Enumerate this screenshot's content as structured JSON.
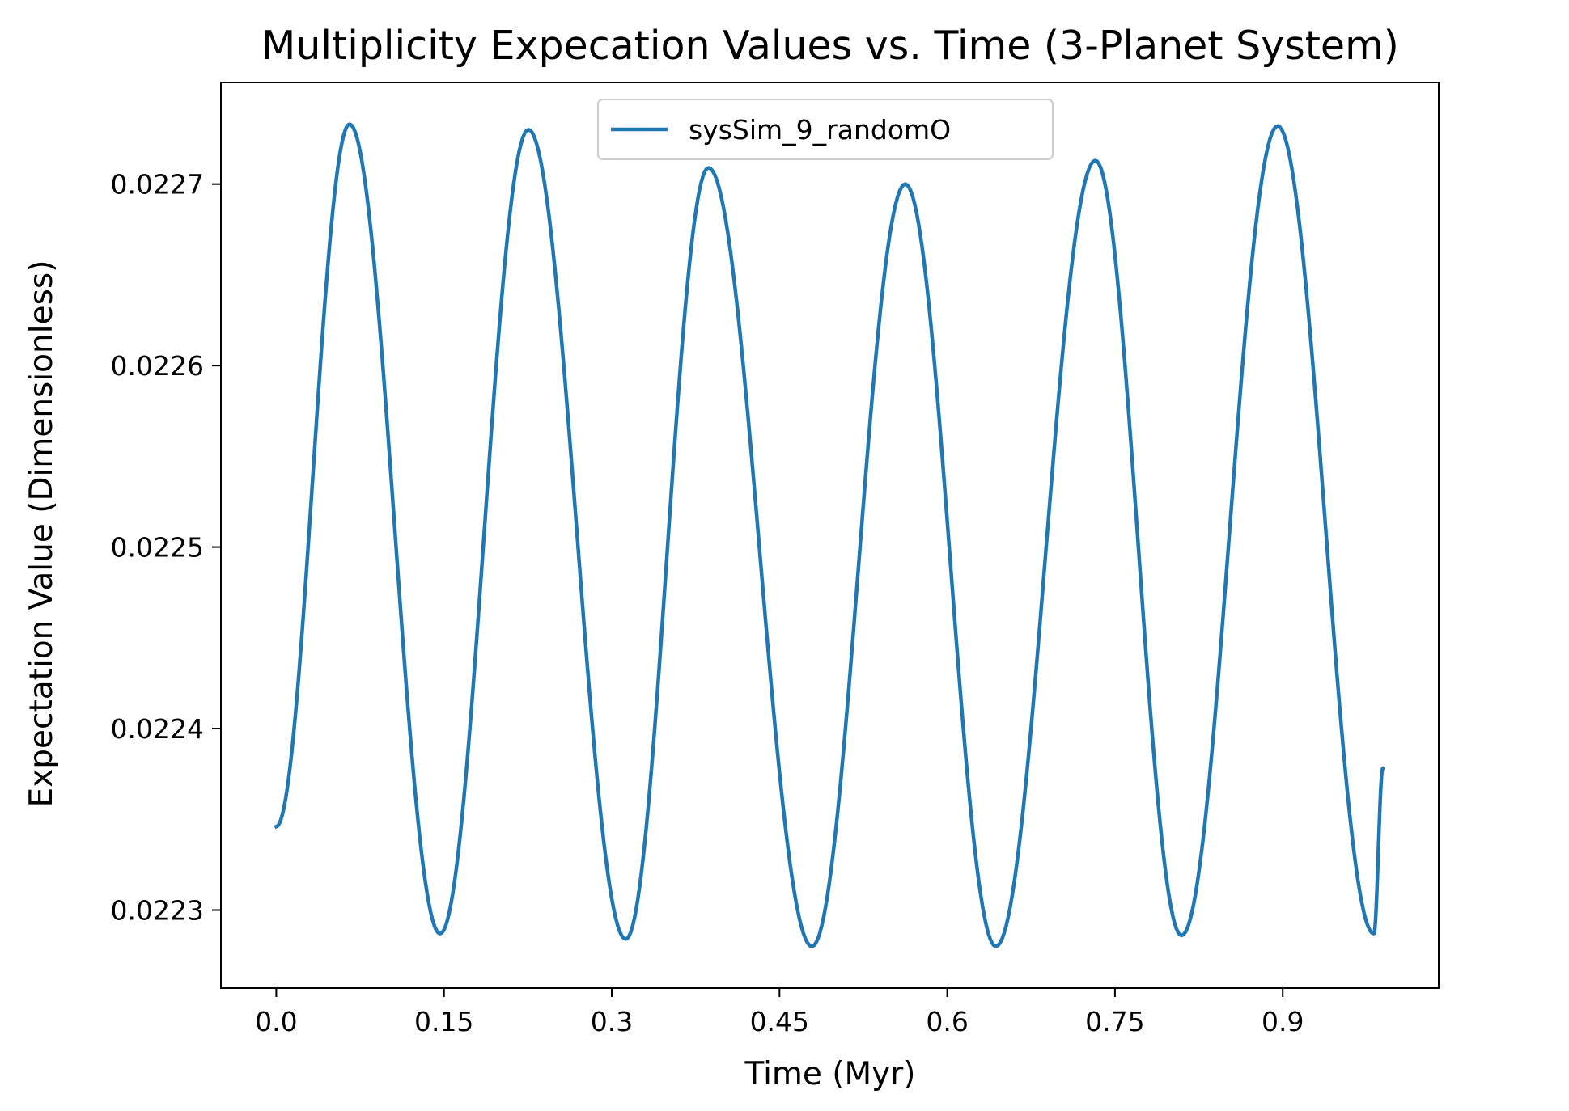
{
  "chart_data": {
    "type": "line",
    "title": "Multiplicity Expecation Values vs. Time (3-Planet System)",
    "xlabel": "Time (Myr)",
    "ylabel": "Expectation Value (Dimensionless)",
    "xlim": [
      -0.0495,
      1.0395
    ],
    "ylim": [
      0.022257,
      0.022756
    ],
    "x_ticks": [
      0.0,
      0.15,
      0.3,
      0.45,
      0.6,
      0.75,
      0.9
    ],
    "x_tick_labels": [
      "0.0",
      "0.15",
      "0.3",
      "0.45",
      "0.6",
      "0.75",
      "0.9"
    ],
    "y_ticks": [
      0.0223,
      0.0224,
      0.0225,
      0.0226,
      0.0227
    ],
    "y_tick_labels": [
      "0.0223",
      "0.0224",
      "0.0225",
      "0.0226",
      "0.0227"
    ],
    "grid": false,
    "legend": {
      "position": "upper center"
    },
    "series": [
      {
        "name": "sysSim_9_randomO",
        "color": "#1f77b4",
        "x": [
          0.0,
          0.0655,
          0.1465,
          0.2255,
          0.3125,
          0.3865,
          0.479,
          0.5625,
          0.6435,
          0.7325,
          0.8095,
          0.8955,
          0.9815,
          0.9895
        ],
        "y": [
          0.022346,
          0.022733,
          0.022287,
          0.02273,
          0.022284,
          0.022709,
          0.02228,
          0.0227,
          0.02228,
          0.022713,
          0.022286,
          0.022732,
          0.022287,
          0.022378
        ]
      }
    ]
  }
}
